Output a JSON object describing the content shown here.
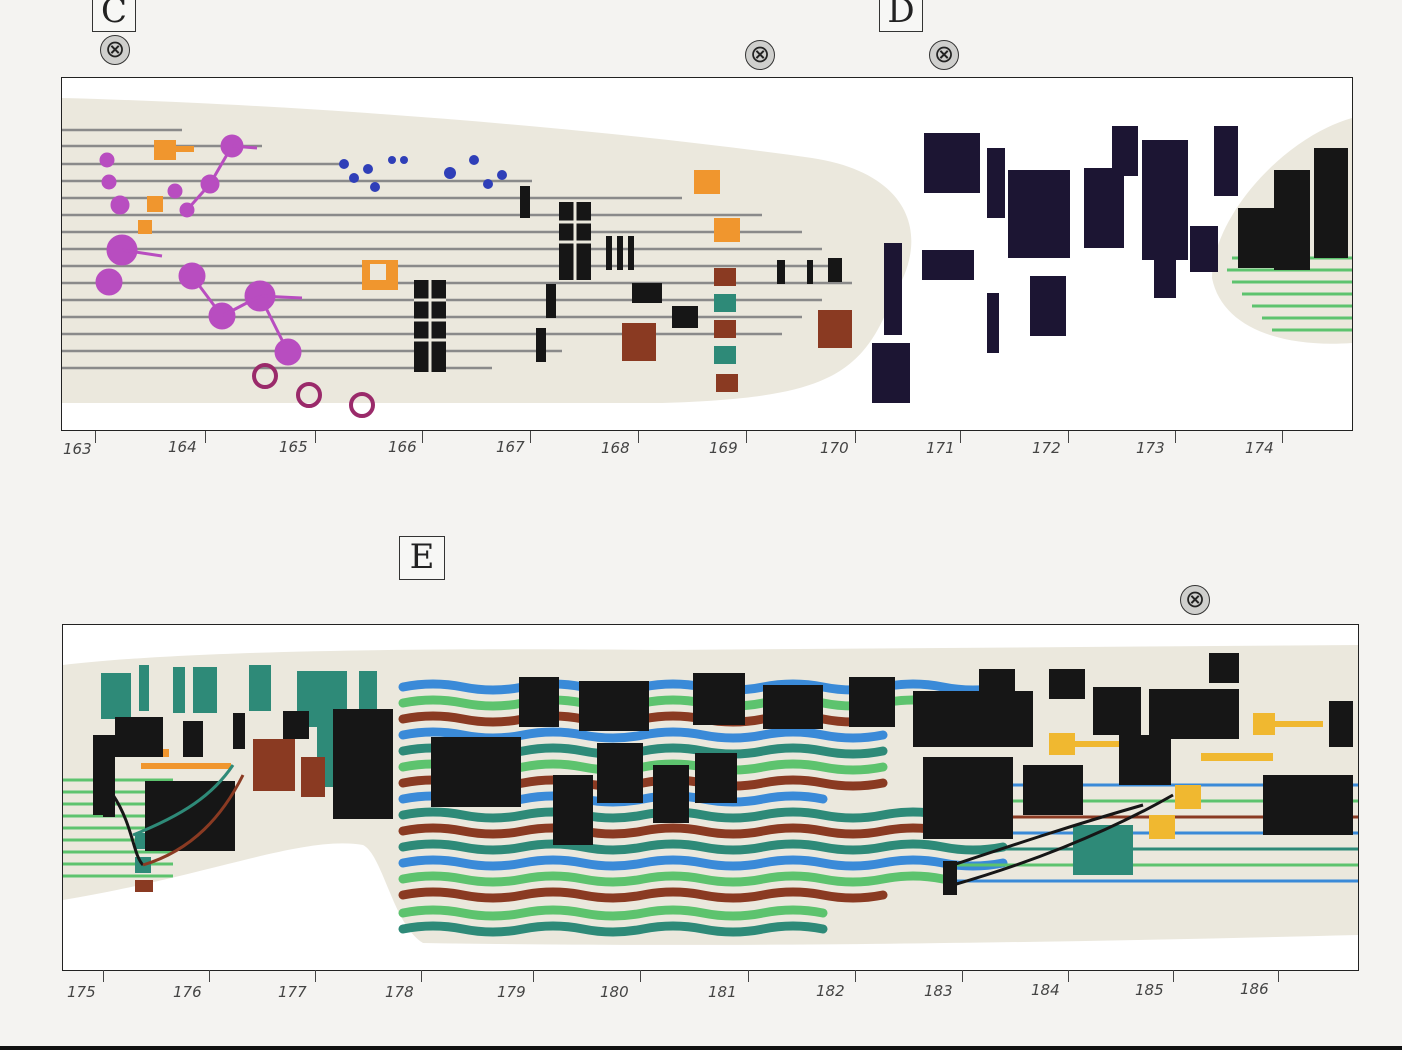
{
  "colors": {
    "paper": "#f4f3f1",
    "band": "#ebe8dd",
    "staff": "#8a8a8a",
    "magenta": "#b84dc0",
    "orange": "#f0962e",
    "blue": "#2f3fb8",
    "black": "#161616",
    "navy": "#1c1533",
    "brown": "#8a3a22",
    "teal": "#2e8a78",
    "green": "#5dc36e",
    "sky": "#3a8ad8",
    "yellow": "#f0b830"
  },
  "rehearsal_marks": [
    "C",
    "D",
    "E"
  ],
  "cue_symbol": "⊗",
  "system1": {
    "measures": [
      "163",
      "164",
      "165",
      "166",
      "167",
      "168",
      "169",
      "170",
      "171",
      "172",
      "173",
      "174"
    ]
  },
  "system2": {
    "measures": [
      "175",
      "176",
      "177",
      "178",
      "179",
      "180",
      "181",
      "182",
      "183",
      "184",
      "185",
      "186"
    ]
  }
}
